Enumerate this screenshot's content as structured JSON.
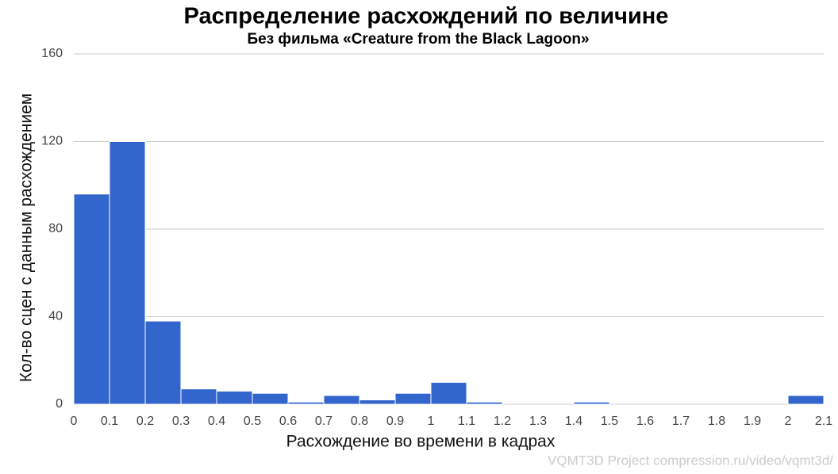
{
  "chart_data": {
    "type": "histogram",
    "title": "Распределение расхождений по величине",
    "subtitle": "Без фильма «Creature from the Black Lagoon»",
    "x_label": "Расхождение во времени в кадрах",
    "y_label": "Кол-во сцен с данным расхождением",
    "watermark": "VQMT3D Project compression.ru/video/vqmt3d/",
    "bins": [
      0,
      0.1,
      0.2,
      0.3,
      0.4,
      0.5,
      0.6,
      0.7,
      0.8,
      0.9,
      1,
      1.1,
      1.2,
      1.3,
      1.4,
      1.5,
      1.6,
      1.7,
      1.8,
      1.9,
      2,
      2.1
    ],
    "values": [
      96,
      120,
      38,
      7,
      6,
      5,
      1,
      4,
      2,
      5,
      10,
      1,
      0,
      0,
      1,
      0,
      0,
      0,
      0,
      0,
      4
    ],
    "color": "#3366cc",
    "xlim": [
      0,
      2.1
    ],
    "xticks": [
      0,
      0.1,
      0.2,
      0.3,
      0.4,
      0.5,
      0.6,
      0.7,
      0.8,
      0.9,
      1,
      1.1,
      1.2,
      1.3,
      1.4,
      1.5,
      1.6,
      1.7,
      1.8,
      1.9,
      2,
      2.1
    ],
    "ylim": [
      0,
      160
    ],
    "yticks": [
      0,
      40,
      80,
      120,
      160
    ],
    "grid": true
  }
}
